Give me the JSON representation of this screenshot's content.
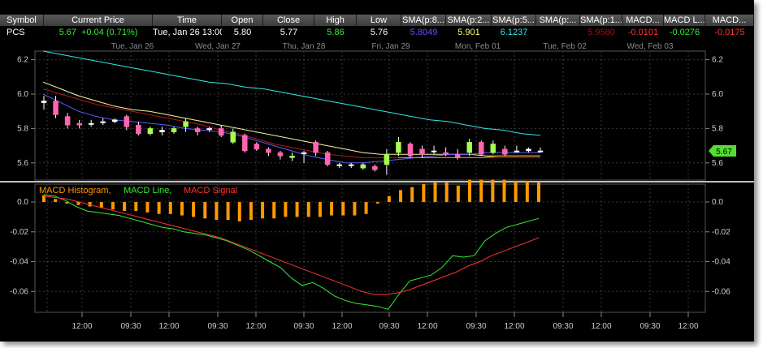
{
  "quote": {
    "headers": [
      {
        "key": "symbol",
        "label": "Symbol"
      },
      {
        "key": "current_price",
        "label": "Current Price"
      },
      {
        "key": "time",
        "label": "Time"
      },
      {
        "key": "open",
        "label": "Open"
      },
      {
        "key": "close",
        "label": "Close"
      },
      {
        "key": "high",
        "label": "High"
      },
      {
        "key": "low",
        "label": "Low"
      },
      {
        "key": "sma8",
        "label": "SMA(p:8..."
      },
      {
        "key": "sma2",
        "label": "SMA(p:2..."
      },
      {
        "key": "sma5",
        "label": "SMA(p:5..."
      },
      {
        "key": "sma_a",
        "label": "SMA(p:..."
      },
      {
        "key": "sma1",
        "label": "SMA(p:1..."
      },
      {
        "key": "macd",
        "label": "MACD..."
      },
      {
        "key": "macdl",
        "label": "MACD L..."
      },
      {
        "key": "macds",
        "label": "MACD..."
      }
    ],
    "values": {
      "symbol": "PCS",
      "price": "5.67",
      "change": "+0.04 (0.71%)",
      "time": "Tue, Jan 26  13:00",
      "open": "5.80",
      "close": "5.77",
      "high": "5.86",
      "low": "5.76",
      "sma8": "5.8049",
      "sma2": "5.901",
      "sma5": "6.1237",
      "sma_a": "",
      "sma1": "5.9580",
      "macd": "-0.0101",
      "macdl": "-0.0276",
      "macds": "-0.0175"
    },
    "colors": {
      "price": "#33ee33",
      "change": "#33ee33",
      "sma8": "#6a4dff",
      "sma2": "#ffff66",
      "sma5": "#33e6e6",
      "sma1": "#a01010",
      "macd": "#ff3333",
      "macdl": "#33ee33",
      "macds": "#ff3333"
    }
  },
  "chart_data": {
    "type": "candlestick",
    "date_labels": [
      "Tue, Jan 26",
      "Wed, Jan 27",
      "Thu, Jan 28",
      "Fri, Jan 29",
      "Mon, Feb 01",
      "Tue, Feb 02",
      "Wed, Feb 03"
    ],
    "time_labels": [
      "12:00",
      "09:30",
      "12:00",
      "09:30",
      "12:00",
      "09:30",
      "12:00",
      "09:30",
      "12:00",
      "09:30",
      "12:00",
      "09:30",
      "12:00",
      "09:30",
      "12:00"
    ],
    "price_axis": {
      "ylim": [
        5.5,
        6.25
      ],
      "ticks": [
        5.6,
        5.8,
        6.0,
        6.2
      ],
      "tick_labels": [
        "5.6",
        "5.8",
        "6.0",
        "6.2"
      ]
    },
    "last_price_tag": "5.67",
    "candles": [
      {
        "o": 5.96,
        "c": 5.95,
        "h": 5.99,
        "l": 5.91,
        "dir": "flat"
      },
      {
        "o": 5.96,
        "c": 5.88,
        "h": 5.99,
        "l": 5.86,
        "dir": "down"
      },
      {
        "o": 5.87,
        "c": 5.82,
        "h": 5.89,
        "l": 5.8,
        "dir": "down"
      },
      {
        "o": 5.83,
        "c": 5.82,
        "h": 5.85,
        "l": 5.8,
        "dir": "down"
      },
      {
        "o": 5.83,
        "c": 5.83,
        "h": 5.85,
        "l": 5.81,
        "dir": "flat"
      },
      {
        "o": 5.84,
        "c": 5.84,
        "h": 5.86,
        "l": 5.82,
        "dir": "flat"
      },
      {
        "o": 5.85,
        "c": 5.84,
        "h": 5.86,
        "l": 5.83,
        "dir": "flat"
      },
      {
        "o": 5.87,
        "c": 5.81,
        "h": 5.88,
        "l": 5.79,
        "dir": "down"
      },
      {
        "o": 5.82,
        "c": 5.77,
        "h": 5.84,
        "l": 5.76,
        "dir": "down"
      },
      {
        "o": 5.77,
        "c": 5.8,
        "h": 5.81,
        "l": 5.76,
        "dir": "up"
      },
      {
        "o": 5.79,
        "c": 5.78,
        "h": 5.81,
        "l": 5.76,
        "dir": "flat"
      },
      {
        "o": 5.78,
        "c": 5.8,
        "h": 5.81,
        "l": 5.77,
        "dir": "up"
      },
      {
        "o": 5.81,
        "c": 5.84,
        "h": 5.86,
        "l": 5.78,
        "dir": "up"
      },
      {
        "o": 5.8,
        "c": 5.78,
        "h": 5.81,
        "l": 5.76,
        "dir": "down"
      },
      {
        "o": 5.8,
        "c": 5.8,
        "h": 5.81,
        "l": 5.78,
        "dir": "flat"
      },
      {
        "o": 5.8,
        "c": 5.76,
        "h": 5.82,
        "l": 5.75,
        "dir": "down"
      },
      {
        "o": 5.72,
        "c": 5.78,
        "h": 5.8,
        "l": 5.71,
        "dir": "up"
      },
      {
        "o": 5.76,
        "c": 5.67,
        "h": 5.77,
        "l": 5.66,
        "dir": "down"
      },
      {
        "o": 5.71,
        "c": 5.68,
        "h": 5.72,
        "l": 5.67,
        "dir": "down"
      },
      {
        "o": 5.68,
        "c": 5.66,
        "h": 5.69,
        "l": 5.64,
        "dir": "down"
      },
      {
        "o": 5.66,
        "c": 5.64,
        "h": 5.67,
        "l": 5.62,
        "dir": "down"
      },
      {
        "o": 5.63,
        "c": 5.64,
        "h": 5.66,
        "l": 5.61,
        "dir": "up"
      },
      {
        "o": 5.66,
        "c": 5.66,
        "h": 5.67,
        "l": 5.6,
        "dir": "flat"
      },
      {
        "o": 5.72,
        "c": 5.66,
        "h": 5.73,
        "l": 5.64,
        "dir": "down"
      },
      {
        "o": 5.66,
        "c": 5.59,
        "h": 5.67,
        "l": 5.58,
        "dir": "down"
      },
      {
        "o": 5.59,
        "c": 5.59,
        "h": 5.6,
        "l": 5.57,
        "dir": "flat"
      },
      {
        "o": 5.59,
        "c": 5.59,
        "h": 5.6,
        "l": 5.57,
        "dir": "flat"
      },
      {
        "o": 5.57,
        "c": 5.59,
        "h": 5.6,
        "l": 5.56,
        "dir": "up"
      },
      {
        "o": 5.58,
        "c": 5.56,
        "h": 5.59,
        "l": 5.55,
        "dir": "down"
      },
      {
        "o": 5.59,
        "c": 5.65,
        "h": 5.68,
        "l": 5.53,
        "dir": "up"
      },
      {
        "o": 5.66,
        "c": 5.72,
        "h": 5.75,
        "l": 5.64,
        "dir": "up"
      },
      {
        "o": 5.71,
        "c": 5.64,
        "h": 5.72,
        "l": 5.63,
        "dir": "down"
      },
      {
        "o": 5.68,
        "c": 5.65,
        "h": 5.7,
        "l": 5.63,
        "dir": "down"
      },
      {
        "o": 5.67,
        "c": 5.67,
        "h": 5.7,
        "l": 5.65,
        "dir": "flat"
      },
      {
        "o": 5.66,
        "c": 5.65,
        "h": 5.69,
        "l": 5.64,
        "dir": "down"
      },
      {
        "o": 5.65,
        "c": 5.63,
        "h": 5.68,
        "l": 5.62,
        "dir": "down"
      },
      {
        "o": 5.66,
        "c": 5.72,
        "h": 5.74,
        "l": 5.64,
        "dir": "up"
      },
      {
        "o": 5.72,
        "c": 5.65,
        "h": 5.73,
        "l": 5.64,
        "dir": "down"
      },
      {
        "o": 5.66,
        "c": 5.71,
        "h": 5.73,
        "l": 5.65,
        "dir": "up"
      },
      {
        "o": 5.68,
        "c": 5.65,
        "h": 5.7,
        "l": 5.64,
        "dir": "down"
      },
      {
        "o": 5.67,
        "c": 5.67,
        "h": 5.7,
        "l": 5.66,
        "dir": "flat"
      },
      {
        "o": 5.68,
        "c": 5.67,
        "h": 5.69,
        "l": 5.66,
        "dir": "flat"
      },
      {
        "o": 5.67,
        "c": 5.67,
        "h": 5.69,
        "l": 5.66,
        "dir": "flat"
      }
    ],
    "sma_lines": [
      {
        "color": "#33e6e6",
        "values": [
          6.25,
          6.23,
          6.21,
          6.19,
          6.17,
          6.15,
          6.13,
          6.11,
          6.09,
          6.07,
          6.06,
          6.04,
          6.03,
          6.01,
          5.99,
          5.97,
          5.95,
          5.93,
          5.91,
          5.89,
          5.87,
          5.85,
          5.84,
          5.82,
          5.8,
          5.79,
          5.77,
          5.76
        ]
      },
      {
        "color": "#f4f4a0",
        "values": [
          6.07,
          6.03,
          5.99,
          5.96,
          5.93,
          5.91,
          5.9,
          5.88,
          5.86,
          5.84,
          5.82,
          5.8,
          5.78,
          5.76,
          5.74,
          5.72,
          5.7,
          5.68,
          5.66,
          5.65,
          5.65,
          5.65,
          5.65,
          5.65,
          5.65,
          5.64,
          5.64,
          5.64,
          5.64
        ]
      },
      {
        "color": "#b01818",
        "values": [
          6.03,
          6.0,
          5.97,
          5.94,
          5.92,
          5.9,
          5.88,
          5.86,
          5.84,
          5.82,
          5.79,
          5.77,
          5.74,
          5.71,
          5.69,
          5.67,
          5.65,
          5.64,
          5.63,
          5.63,
          5.63,
          5.63,
          5.63,
          5.63,
          5.63,
          5.63,
          5.63,
          5.63,
          5.63
        ]
      },
      {
        "color": "#5a5aff",
        "values": [
          6.0,
          5.95,
          5.9,
          5.87,
          5.85,
          5.84,
          5.83,
          5.82,
          5.8,
          5.79,
          5.78,
          5.76,
          5.73,
          5.7,
          5.67,
          5.64,
          5.62,
          5.6,
          5.6,
          5.61,
          5.62,
          5.63,
          5.64,
          5.65,
          5.65,
          5.66,
          5.66,
          5.66,
          5.66
        ]
      },
      {
        "color": "#ff9900",
        "values": [
          5.63,
          5.63,
          5.63,
          5.63,
          5.63,
          5.63,
          5.63,
          5.64,
          5.64,
          5.64,
          5.64
        ]
      }
    ],
    "macd_axis": {
      "ylim": [
        -0.074,
        0.012
      ],
      "ticks": [
        0.0,
        -0.02,
        -0.04,
        -0.06
      ],
      "tick_labels": [
        "0.0",
        "-0.02",
        "-0.04",
        "-0.06"
      ]
    },
    "macd_legend": [
      {
        "name": "MACD Histogram,",
        "color": "#ff9900"
      },
      {
        "name": "MACD Line,",
        "color": "#33ee33"
      },
      {
        "name": "MACD Signal",
        "color": "#ff3333"
      }
    ],
    "macd_histogram": [
      0.0045,
      0.002,
      -0.001,
      -0.002,
      -0.003,
      -0.004,
      -0.005,
      -0.006,
      -0.006,
      -0.007,
      -0.008,
      -0.008,
      -0.009,
      -0.01,
      -0.011,
      -0.012,
      -0.012,
      -0.013,
      -0.012,
      -0.011,
      -0.011,
      -0.01,
      -0.01,
      -0.01,
      -0.01,
      -0.009,
      -0.009,
      -0.009,
      -0.008,
      -0.001,
      0.004,
      0.008,
      0.01,
      0.012,
      0.013,
      0.013,
      0.011,
      0.015,
      0.015,
      0.015,
      0.015,
      0.014,
      0.014,
      0.013
    ],
    "macd_line": [
      0.005,
      0.004,
      0.001,
      -0.003,
      -0.006,
      -0.007,
      -0.008,
      -0.009,
      -0.011,
      -0.013,
      -0.015,
      -0.017,
      -0.018,
      -0.02,
      -0.021,
      -0.022,
      -0.024,
      -0.026,
      -0.029,
      -0.032,
      -0.036,
      -0.04,
      -0.044,
      -0.051,
      -0.056,
      -0.054,
      -0.058,
      -0.063,
      -0.066,
      -0.068,
      -0.069,
      -0.07,
      -0.072,
      -0.062,
      -0.053,
      -0.051,
      -0.049,
      -0.044,
      -0.036,
      -0.037,
      -0.036,
      -0.026,
      -0.021,
      -0.017,
      -0.015,
      -0.013,
      -0.011
    ],
    "macd_signal": [
      0.004,
      0.003,
      0.002,
      0.0,
      -0.002,
      -0.004,
      -0.006,
      -0.008,
      -0.01,
      -0.012,
      -0.014,
      -0.016,
      -0.018,
      -0.02,
      -0.022,
      -0.024,
      -0.027,
      -0.03,
      -0.033,
      -0.036,
      -0.039,
      -0.042,
      -0.045,
      -0.048,
      -0.051,
      -0.054,
      -0.057,
      -0.06,
      -0.062,
      -0.062,
      -0.061,
      -0.059,
      -0.056,
      -0.053,
      -0.05,
      -0.047,
      -0.043,
      -0.04,
      -0.036,
      -0.033,
      -0.03,
      -0.027,
      -0.024
    ]
  }
}
